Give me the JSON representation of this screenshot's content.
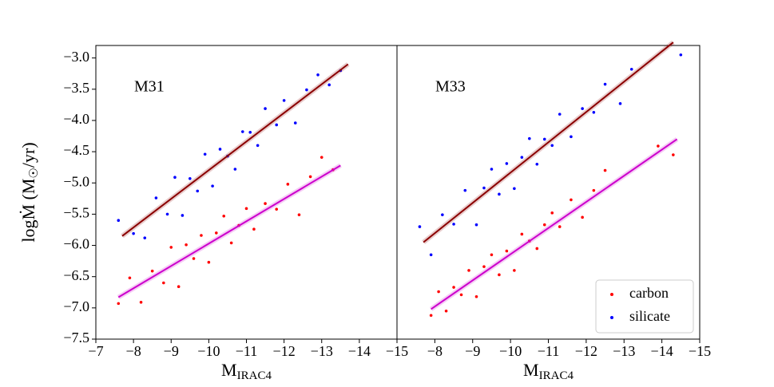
{
  "chart_data": [
    {
      "type": "scatter",
      "annotation": "M31",
      "xlabel": {
        "main": "M",
        "sub": "IRAC4"
      },
      "ylabel": {
        "main": "logṀ (M",
        "sub": "☉",
        "end": "/yr)"
      },
      "xlim": [
        -7,
        -15
      ],
      "xticks": [
        {
          "value": -7,
          "label": "−7"
        },
        {
          "value": -8,
          "label": "−8"
        },
        {
          "value": -9,
          "label": "−9"
        },
        {
          "value": -10,
          "label": "−10"
        },
        {
          "value": -11,
          "label": "−11"
        },
        {
          "value": -12,
          "label": "−12"
        },
        {
          "value": -13,
          "label": "−13"
        },
        {
          "value": -14,
          "label": "−14"
        },
        {
          "value": -15,
          "label": "−15"
        }
      ],
      "ylim": [
        -7.5,
        -2.8
      ],
      "yticks": [
        {
          "value": -3,
          "label": "−3.0"
        },
        {
          "value": -3.5,
          "label": "−3.5"
        },
        {
          "value": -4,
          "label": "−4.0"
        },
        {
          "value": -4.5,
          "label": "−4.5"
        },
        {
          "value": -5,
          "label": "−5.0"
        },
        {
          "value": -5.5,
          "label": "−5.5"
        },
        {
          "value": -6,
          "label": "−6.0"
        },
        {
          "value": -6.5,
          "label": "−6.5"
        },
        {
          "value": -7,
          "label": "−7.0"
        },
        {
          "value": -7.5,
          "label": "−7.5"
        }
      ],
      "series": [
        {
          "color": "#ff0000",
          "x": [
            -7.6,
            -7.9,
            -8.2,
            -8.5,
            -8.8,
            -9.0,
            -9.2,
            -9.4,
            -9.6,
            -9.8,
            -10.0,
            -10.2,
            -10.4,
            -10.6,
            -10.8,
            -11.0,
            -11.2,
            -11.5,
            -11.8,
            -12.1,
            -12.4,
            -12.7,
            -13.0,
            -13.3
          ],
          "values": [
            -6.93,
            -6.52,
            -6.91,
            -6.41,
            -6.6,
            -6.03,
            -6.66,
            -5.99,
            -6.21,
            -5.84,
            -6.27,
            -5.8,
            -5.53,
            -5.96,
            -5.68,
            -5.41,
            -5.74,
            -5.33,
            -5.42,
            -5.02,
            -5.51,
            -4.9,
            -4.59,
            -4.79
          ]
        },
        {
          "color": "#0000ff",
          "x": [
            -7.6,
            -8.0,
            -8.3,
            -8.6,
            -8.9,
            -9.1,
            -9.3,
            -9.5,
            -9.7,
            -9.9,
            -10.1,
            -10.3,
            -10.5,
            -10.7,
            -10.9,
            -11.1,
            -11.3,
            -11.5,
            -11.8,
            -12.0,
            -12.3,
            -12.6,
            -12.9,
            -13.2,
            -13.5
          ],
          "values": [
            -5.6,
            -5.81,
            -5.88,
            -5.24,
            -5.5,
            -4.91,
            -5.52,
            -4.93,
            -5.13,
            -4.54,
            -5.05,
            -4.46,
            -4.57,
            -4.78,
            -4.18,
            -4.19,
            -4.4,
            -3.81,
            -4.07,
            -3.68,
            -4.04,
            -3.51,
            -3.27,
            -3.43,
            -3.2
          ]
        }
      ],
      "fits": [
        {
          "color": "#cc00cc",
          "x": [
            -7.6,
            -13.5
          ],
          "values": [
            -6.83,
            -4.72
          ]
        },
        {
          "color": "#8b0000",
          "x": [
            -7.7,
            -13.7
          ],
          "values": [
            -5.85,
            -3.1
          ]
        }
      ]
    },
    {
      "type": "scatter",
      "annotation": "M33",
      "xlabel": {
        "main": "M",
        "sub": "IRAC4"
      },
      "xlim": [
        -7,
        -15
      ],
      "xticks": [
        {
          "value": -8,
          "label": "−8"
        },
        {
          "value": -9,
          "label": "−9"
        },
        {
          "value": -10,
          "label": "−10"
        },
        {
          "value": -11,
          "label": "−11"
        },
        {
          "value": -12,
          "label": "−12"
        },
        {
          "value": -13,
          "label": "−13"
        },
        {
          "value": -14,
          "label": "−14"
        },
        {
          "value": -15,
          "label": "−15"
        }
      ],
      "ylim": [
        -7.5,
        -2.8
      ],
      "legend": "lower right",
      "series": [
        {
          "name": "carbon",
          "color": "#ff0000",
          "x": [
            -7.9,
            -8.1,
            -8.3,
            -8.5,
            -8.7,
            -8.9,
            -9.1,
            -9.3,
            -9.5,
            -9.7,
            -9.9,
            -10.1,
            -10.3,
            -10.5,
            -10.7,
            -10.9,
            -11.1,
            -11.3,
            -11.6,
            -11.9,
            -12.2,
            -12.5,
            -13.9,
            -14.3
          ],
          "values": [
            -7.12,
            -6.74,
            -7.05,
            -6.67,
            -6.79,
            -6.4,
            -6.82,
            -6.34,
            -6.15,
            -6.47,
            -6.09,
            -6.4,
            -5.82,
            -5.93,
            -6.05,
            -5.67,
            -5.48,
            -5.7,
            -5.27,
            -5.55,
            -5.12,
            -4.8,
            -4.41,
            -4.55
          ]
        },
        {
          "name": "silicate",
          "color": "#0000ff",
          "x": [
            -7.6,
            -7.9,
            -8.2,
            -8.5,
            -8.8,
            -9.1,
            -9.3,
            -9.5,
            -9.7,
            -9.9,
            -10.1,
            -10.3,
            -10.5,
            -10.7,
            -10.9,
            -11.1,
            -11.3,
            -11.6,
            -11.9,
            -12.2,
            -12.5,
            -12.9,
            -13.2,
            -14.5
          ],
          "values": [
            -5.7,
            -6.15,
            -5.51,
            -5.66,
            -5.12,
            -5.67,
            -5.08,
            -4.78,
            -5.18,
            -4.69,
            -5.09,
            -4.59,
            -4.29,
            -4.7,
            -4.3,
            -4.4,
            -3.9,
            -4.26,
            -3.81,
            -3.87,
            -3.42,
            -3.73,
            -3.18,
            -2.95
          ]
        }
      ],
      "fits": [
        {
          "color": "#cc00cc",
          "x": [
            -7.9,
            -14.4
          ],
          "values": [
            -7.02,
            -4.3
          ]
        },
        {
          "color": "#8b0000",
          "x": [
            -7.7,
            -14.3
          ],
          "values": [
            -5.95,
            -2.75
          ]
        }
      ]
    }
  ]
}
